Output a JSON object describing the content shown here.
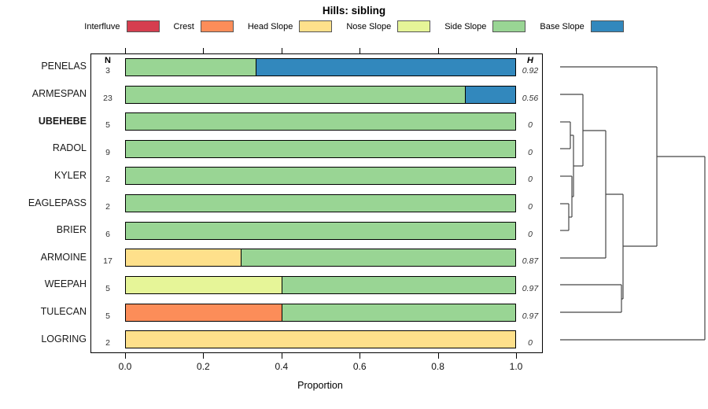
{
  "title": "Hills: sibling",
  "legend": [
    {
      "label": "Interfluve",
      "color": "#d53e4f"
    },
    {
      "label": "Crest",
      "color": "#fc8d59"
    },
    {
      "label": "Head Slope",
      "color": "#fee08b"
    },
    {
      "label": "Nose Slope",
      "color": "#e6f598"
    },
    {
      "label": "Side Slope",
      "color": "#99d594"
    },
    {
      "label": "Base Slope",
      "color": "#3288bd"
    }
  ],
  "columns": {
    "n_header": "N",
    "h_header": "H"
  },
  "axis": {
    "label": "Proportion",
    "ticks": [
      "0.0",
      "0.2",
      "0.4",
      "0.6",
      "0.8",
      "1.0"
    ],
    "tick_values": [
      0,
      0.2,
      0.4,
      0.6,
      0.8,
      1.0
    ],
    "range": [
      0,
      1
    ]
  },
  "chart_data": {
    "type": "bar",
    "orientation": "horizontal",
    "stacked": true,
    "title": "Hills: sibling",
    "xlabel": "Proportion",
    "xlim": [
      0,
      1
    ],
    "legend_position": "top",
    "grid": false,
    "categories": [
      "PENELAS",
      "ARMESPAN",
      "UBEHEBE",
      "RADOL",
      "KYLER",
      "EAGLEPASS",
      "BRIER",
      "ARMOINE",
      "WEEPAH",
      "TULECAN",
      "LOGRING"
    ],
    "rows": [
      {
        "name": "PENELAS",
        "n": 3,
        "h": "0.92",
        "bold": false,
        "segments": [
          {
            "class": "Side Slope",
            "value": 0.333
          },
          {
            "class": "Base Slope",
            "value": 0.667
          }
        ]
      },
      {
        "name": "ARMESPAN",
        "n": 23,
        "h": "0.56",
        "bold": false,
        "segments": [
          {
            "class": "Side Slope",
            "value": 0.87
          },
          {
            "class": "Base Slope",
            "value": 0.13
          }
        ]
      },
      {
        "name": "UBEHEBE",
        "n": 5,
        "h": "0",
        "bold": true,
        "segments": [
          {
            "class": "Side Slope",
            "value": 1
          }
        ]
      },
      {
        "name": "RADOL",
        "n": 9,
        "h": "0",
        "bold": false,
        "segments": [
          {
            "class": "Side Slope",
            "value": 1
          }
        ]
      },
      {
        "name": "KYLER",
        "n": 2,
        "h": "0",
        "bold": false,
        "segments": [
          {
            "class": "Side Slope",
            "value": 1
          }
        ]
      },
      {
        "name": "EAGLEPASS",
        "n": 2,
        "h": "0",
        "bold": false,
        "segments": [
          {
            "class": "Side Slope",
            "value": 1
          }
        ]
      },
      {
        "name": "BRIER",
        "n": 6,
        "h": "0",
        "bold": false,
        "segments": [
          {
            "class": "Side Slope",
            "value": 1
          }
        ]
      },
      {
        "name": "ARMOINE",
        "n": 17,
        "h": "0.87",
        "bold": false,
        "segments": [
          {
            "class": "Head Slope",
            "value": 0.294
          },
          {
            "class": "Side Slope",
            "value": 0.706
          }
        ]
      },
      {
        "name": "WEEPAH",
        "n": 5,
        "h": "0.97",
        "bold": false,
        "segments": [
          {
            "class": "Nose Slope",
            "value": 0.4
          },
          {
            "class": "Side Slope",
            "value": 0.6
          }
        ]
      },
      {
        "name": "TULECAN",
        "n": 5,
        "h": "0.97",
        "bold": false,
        "segments": [
          {
            "class": "Crest",
            "value": 0.4
          },
          {
            "class": "Side Slope",
            "value": 0.6
          }
        ]
      },
      {
        "name": "LOGRING",
        "n": 2,
        "h": "0",
        "bold": false,
        "segments": [
          {
            "class": "Head Slope",
            "value": 1
          }
        ]
      }
    ],
    "dendrogram": {
      "leaf_order": [
        "PENELAS",
        "ARMESPAN",
        "UBEHEBE",
        "RADOL",
        "KYLER",
        "EAGLEPASS",
        "BRIER",
        "ARMOINE",
        "WEEPAH",
        "TULECAN",
        "LOGRING"
      ],
      "h_segments": [
        [
          712,
          835,
          85
        ],
        [
          712,
          741,
          120
        ],
        [
          712,
          725,
          155
        ],
        [
          712,
          725,
          189
        ],
        [
          712,
          727,
          224
        ],
        [
          712,
          723,
          259
        ],
        [
          712,
          723,
          293
        ],
        [
          712,
          770,
          328
        ],
        [
          712,
          790,
          362
        ],
        [
          712,
          790,
          397
        ],
        [
          712,
          896,
          432
        ],
        [
          725,
          729,
          172
        ],
        [
          723,
          727,
          276
        ],
        [
          727,
          729,
          250
        ],
        [
          729,
          741,
          211
        ],
        [
          741,
          770,
          166
        ],
        [
          770,
          792,
          247
        ],
        [
          790,
          792,
          380
        ],
        [
          792,
          835,
          313
        ],
        [
          835,
          896,
          199
        ]
      ],
      "v_segments": [
        [
          725,
          155,
          189
        ],
        [
          723,
          259,
          293
        ],
        [
          727,
          224,
          276
        ],
        [
          729,
          172,
          250
        ],
        [
          741,
          120,
          211
        ],
        [
          770,
          166,
          328
        ],
        [
          790,
          362,
          397
        ],
        [
          792,
          247,
          380
        ],
        [
          835,
          85,
          313
        ],
        [
          896,
          199,
          432
        ]
      ]
    }
  }
}
